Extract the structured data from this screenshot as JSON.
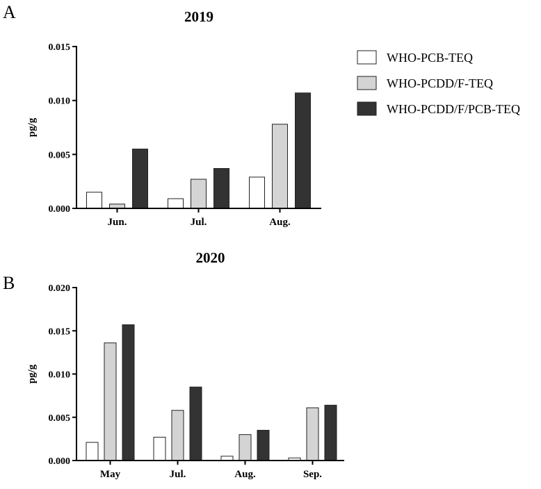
{
  "panels": {
    "a_label": "A",
    "b_label": "B"
  },
  "legend": [
    {
      "name": "WHO-PCB-TEQ",
      "color": "#ffffff"
    },
    {
      "name": "WHO-PCDD/F-TEQ",
      "color": "#d4d4d4"
    },
    {
      "name": "WHO-PCDD/F/PCB-TEQ",
      "color": "#333333"
    }
  ],
  "chart_data": [
    {
      "type": "bar",
      "title": "2019",
      "ylabel": "pg/g",
      "xlabel": "",
      "categories": [
        "Jun.",
        "Jul.",
        "Aug."
      ],
      "ylim": [
        0,
        0.015
      ],
      "yticks": [
        "0.000",
        "0.005",
        "0.010",
        "0.015"
      ],
      "series": [
        {
          "name": "WHO-PCB-TEQ",
          "values": [
            0.0015,
            0.0009,
            0.0029
          ]
        },
        {
          "name": "WHO-PCDD/F-TEQ",
          "values": [
            0.0004,
            0.0027,
            0.0078
          ]
        },
        {
          "name": "WHO-PCDD/F/PCB-TEQ",
          "values": [
            0.0055,
            0.0037,
            0.0107
          ]
        }
      ]
    },
    {
      "type": "bar",
      "title": "2020",
      "ylabel": "pg/g",
      "xlabel": "",
      "categories": [
        "May",
        "Jul.",
        "Aug.",
        "Sep."
      ],
      "ylim": [
        0,
        0.02
      ],
      "yticks": [
        "0.000",
        "0.005",
        "0.010",
        "0.015",
        "0.020"
      ],
      "series": [
        {
          "name": "WHO-PCB-TEQ",
          "values": [
            0.0021,
            0.0027,
            0.0005,
            0.0003
          ]
        },
        {
          "name": "WHO-PCDD/F-TEQ",
          "values": [
            0.0136,
            0.0058,
            0.003,
            0.0061
          ]
        },
        {
          "name": "WHO-PCDD/F/PCB-TEQ",
          "values": [
            0.0157,
            0.0085,
            0.0035,
            0.0064
          ]
        }
      ]
    }
  ]
}
